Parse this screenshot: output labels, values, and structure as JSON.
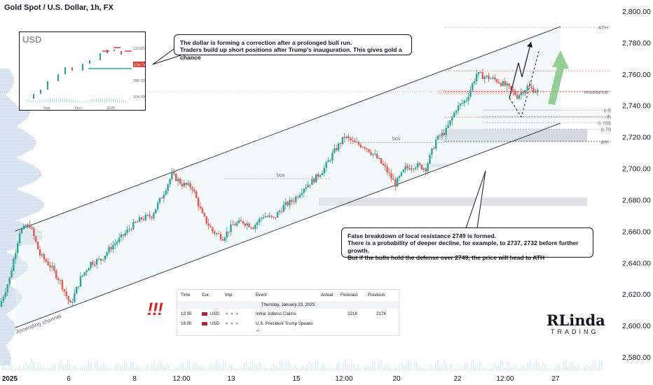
{
  "header": {
    "title": "Gold Spot / U.S. Dollar, 1h, FX"
  },
  "chart_data": {
    "type": "candlestick",
    "symbol": "Gold Spot / U.S. Dollar",
    "timeframe": "1h",
    "ylim": [
      2572,
      2802
    ],
    "yticks": [
      2580,
      2600,
      2620,
      2640,
      2660,
      2680,
      2700,
      2720,
      2740,
      2760,
      2780,
      2800
    ],
    "ytick_labels": [
      "2,580.00",
      "2,600.00",
      "2,620.00",
      "2,640.00",
      "2,660.00",
      "2,680.00",
      "2,700.00",
      "2,720.00",
      "2,740.00",
      "2,760.00",
      "2,780.00",
      "2,800.00"
    ],
    "xtick_labels": [
      "2025",
      "6",
      "8",
      "12:00",
      "13",
      "15",
      "12:00",
      "20",
      "22",
      "12:00",
      "27"
    ],
    "price_path": [
      [
        0,
        2612
      ],
      [
        1,
        2630
      ],
      [
        2,
        2660
      ],
      [
        3,
        2664
      ],
      [
        4,
        2645
      ],
      [
        5,
        2638
      ],
      [
        6,
        2628
      ],
      [
        7,
        2613
      ],
      [
        8,
        2630
      ],
      [
        9,
        2640
      ],
      [
        10,
        2642
      ],
      [
        11,
        2650
      ],
      [
        12,
        2656
      ],
      [
        13,
        2663
      ],
      [
        14,
        2668
      ],
      [
        15,
        2670
      ],
      [
        16,
        2682
      ],
      [
        17,
        2696
      ],
      [
        18,
        2690
      ],
      [
        19,
        2688
      ],
      [
        20,
        2670
      ],
      [
        21,
        2660
      ],
      [
        22,
        2656
      ],
      [
        23,
        2664
      ],
      [
        24,
        2666
      ],
      [
        25,
        2663
      ],
      [
        26,
        2670
      ],
      [
        27,
        2668
      ],
      [
        28,
        2676
      ],
      [
        29,
        2680
      ],
      [
        30,
        2688
      ],
      [
        31,
        2693
      ],
      [
        32,
        2700
      ],
      [
        33,
        2711
      ],
      [
        34,
        2720
      ],
      [
        35,
        2716
      ],
      [
        36,
        2714
      ],
      [
        37,
        2708
      ],
      [
        38,
        2700
      ],
      [
        39,
        2690
      ],
      [
        40,
        2700
      ],
      [
        41,
        2702
      ],
      [
        42,
        2700
      ],
      [
        43,
        2718
      ],
      [
        44,
        2724
      ],
      [
        45,
        2738
      ],
      [
        46,
        2744
      ],
      [
        47,
        2760
      ],
      [
        48,
        2758
      ],
      [
        49,
        2756
      ],
      [
        50,
        2752
      ],
      [
        51,
        2746
      ],
      [
        52,
        2752
      ],
      [
        53,
        2749
      ]
    ],
    "horizontal_levels": [
      {
        "label": "ATH",
        "value": 2789.7,
        "badge": "2,789.70",
        "color": "#e53935"
      },
      {
        "label": "",
        "value": 2762.13,
        "badge": "2,762.13",
        "color": "#e53935"
      },
      {
        "label": "",
        "value": 2749.0,
        "badge": "2,749.00",
        "color": "#e53935"
      },
      {
        "label": "resistance",
        "value": 2748.74,
        "badge": "2,748.74",
        "color": "#e53935"
      },
      {
        "label": "",
        "value": 2732.67,
        "badge": "2,732.67",
        "color": "#e53935"
      },
      {
        "label": "poi",
        "value": 2717.12,
        "badge": "2,717.12",
        "color": "#2a2e39"
      },
      {
        "label": "",
        "value": 2717.12,
        "badge": "2,717.12",
        "color": "#2a2e39"
      }
    ],
    "fib_levels": [
      {
        "label": "0.5",
        "value": 2737
      },
      {
        "label": "lh",
        "value": 2733
      },
      {
        "label": "0.705",
        "value": 2729
      },
      {
        "label": "0.79",
        "value": 2725
      }
    ],
    "annotations": [
      {
        "text": "bos",
        "value": 2720
      },
      {
        "text": "bos",
        "value": 2697
      }
    ],
    "channel_label": "Ascending channel"
  },
  "callouts": {
    "top": [
      "The dollar is forming a correction after a prolonged bull run.",
      "Traders build up short positions after Trump's inauguration. This gives gold a chance"
    ],
    "bottom": [
      "False breakdown of local resistance 2749 is formed.",
      "There is a probability of deeper decline, for example, to 2737, 2732 before further growth.",
      "But if the bulls hold the defense over 2749, the price will head to ATH"
    ]
  },
  "inset": {
    "symbol": "USD",
    "y_labels": [
      "110.00",
      "108.00",
      "106.00",
      "104.00"
    ],
    "x_labels": [
      "Nov",
      "Dec",
      "2025"
    ],
    "last_badge": "108.74"
  },
  "calendar": {
    "headers": [
      "Time",
      "Cur.",
      "Imp.",
      "Event",
      "Actual",
      "Forecast",
      "Previous"
    ],
    "date": "Thursday, January 23, 2025",
    "rows": [
      {
        "time": "13:30",
        "cur": "USD",
        "event": "Initial Jobless Claims",
        "actual": "",
        "forecast": "221K",
        "previous": "217K"
      },
      {
        "time": "16:00",
        "cur": "USD",
        "event": "U.S. President Trump Speaks",
        "actual": "",
        "forecast": "",
        "previous": ""
      }
    ]
  },
  "alert": "!!!",
  "logo": {
    "line1": "RLinda",
    "line2": "TRADING"
  },
  "colors": {
    "up": "#26a69a",
    "down": "#ef5350",
    "line": "#131722",
    "level": "#e53935",
    "zone": "#e0e3eb",
    "arrow": "#81c784"
  }
}
